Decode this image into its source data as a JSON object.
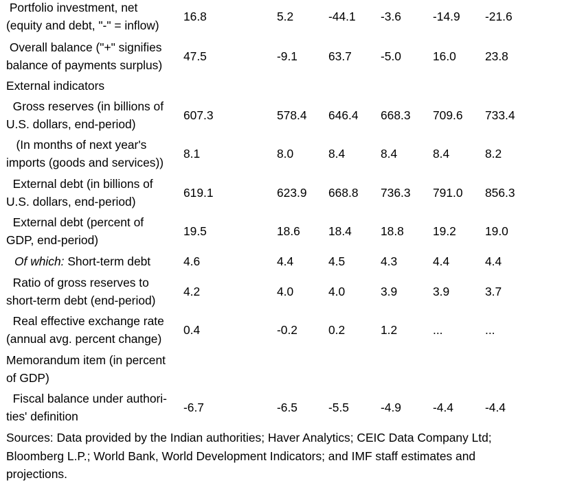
{
  "rows": [
    {
      "label_l1": " Portfolio investment, net",
      "label_l2": "(equity and debt, \"-\" = inflow)",
      "values": [
        "16.8",
        "5.2",
        "-44.1",
        "-3.6",
        "-14.9",
        "-21.6"
      ]
    },
    {
      "label_l1": " Overall balance (\"+\" signifies",
      "label_l2": "balance of payments surplus)",
      "values": [
        "47.5",
        "-9.1",
        "63.7",
        "-5.0",
        "16.0",
        "23.8"
      ]
    },
    {
      "label_l1": "External indicators"
    },
    {
      "label_l1": "  Gross reserves (in billions of",
      "label_l2": "U.S. dollars, end-period)",
      "values": [
        "607.3",
        "578.4",
        "646.4",
        "668.3",
        "709.6",
        "733.4"
      ]
    },
    {
      "label_l1": "   (In months of next year's",
      "label_l2": "imports (goods and services))",
      "values": [
        "8.1",
        "8.0",
        "8.4",
        "8.4",
        "8.4",
        "8.2"
      ]
    },
    {
      "label_l1": "  External debt (in billions of",
      "label_l2": "U.S. dollars, end-period)",
      "values": [
        "619.1",
        "623.9",
        "668.8",
        "736.3",
        "791.0",
        "856.3"
      ]
    },
    {
      "label_l1": "  External debt (percent of",
      "label_l2": "GDP, end-period)",
      "values": [
        "19.5",
        "18.6",
        "18.4",
        "18.8",
        "19.2",
        "19.0"
      ]
    },
    {
      "label_italic": "Of which:",
      "label_rest": " Short-term debt",
      "values": [
        "4.6",
        "4.4",
        "4.5",
        "4.3",
        "4.4",
        "4.4"
      ]
    },
    {
      "label_l1": "  Ratio of gross reserves to",
      "label_l2": "short-term debt (end-period)",
      "values": [
        "4.2",
        "4.0",
        "4.0",
        "3.9",
        "3.9",
        "3.7"
      ]
    },
    {
      "label_l1": "  Real effective exchange rate",
      "label_l2": "(annual avg. percent change)",
      "values": [
        "0.4",
        "-0.2",
        "0.2",
        "1.2",
        "...",
        "..."
      ]
    },
    {
      "label_l1": "Memorandum item (in percent",
      "label_l2": "of GDP)"
    },
    {
      "label_l1": "  Fiscal balance under authori-",
      "label_l2": "ties' definition",
      "values": [
        "-6.7",
        "-6.5",
        "-5.5",
        "-4.9",
        "-4.4",
        "-4.4"
      ]
    }
  ],
  "sources": {
    "line1": "Sources: Data provided by the Indian authorities; Haver Analytics; CEIC Data Company Ltd;",
    "line2": "Bloomberg L.P.; World Bank, World Development Indicators; and IMF staff estimates and",
    "line3": "projections."
  }
}
